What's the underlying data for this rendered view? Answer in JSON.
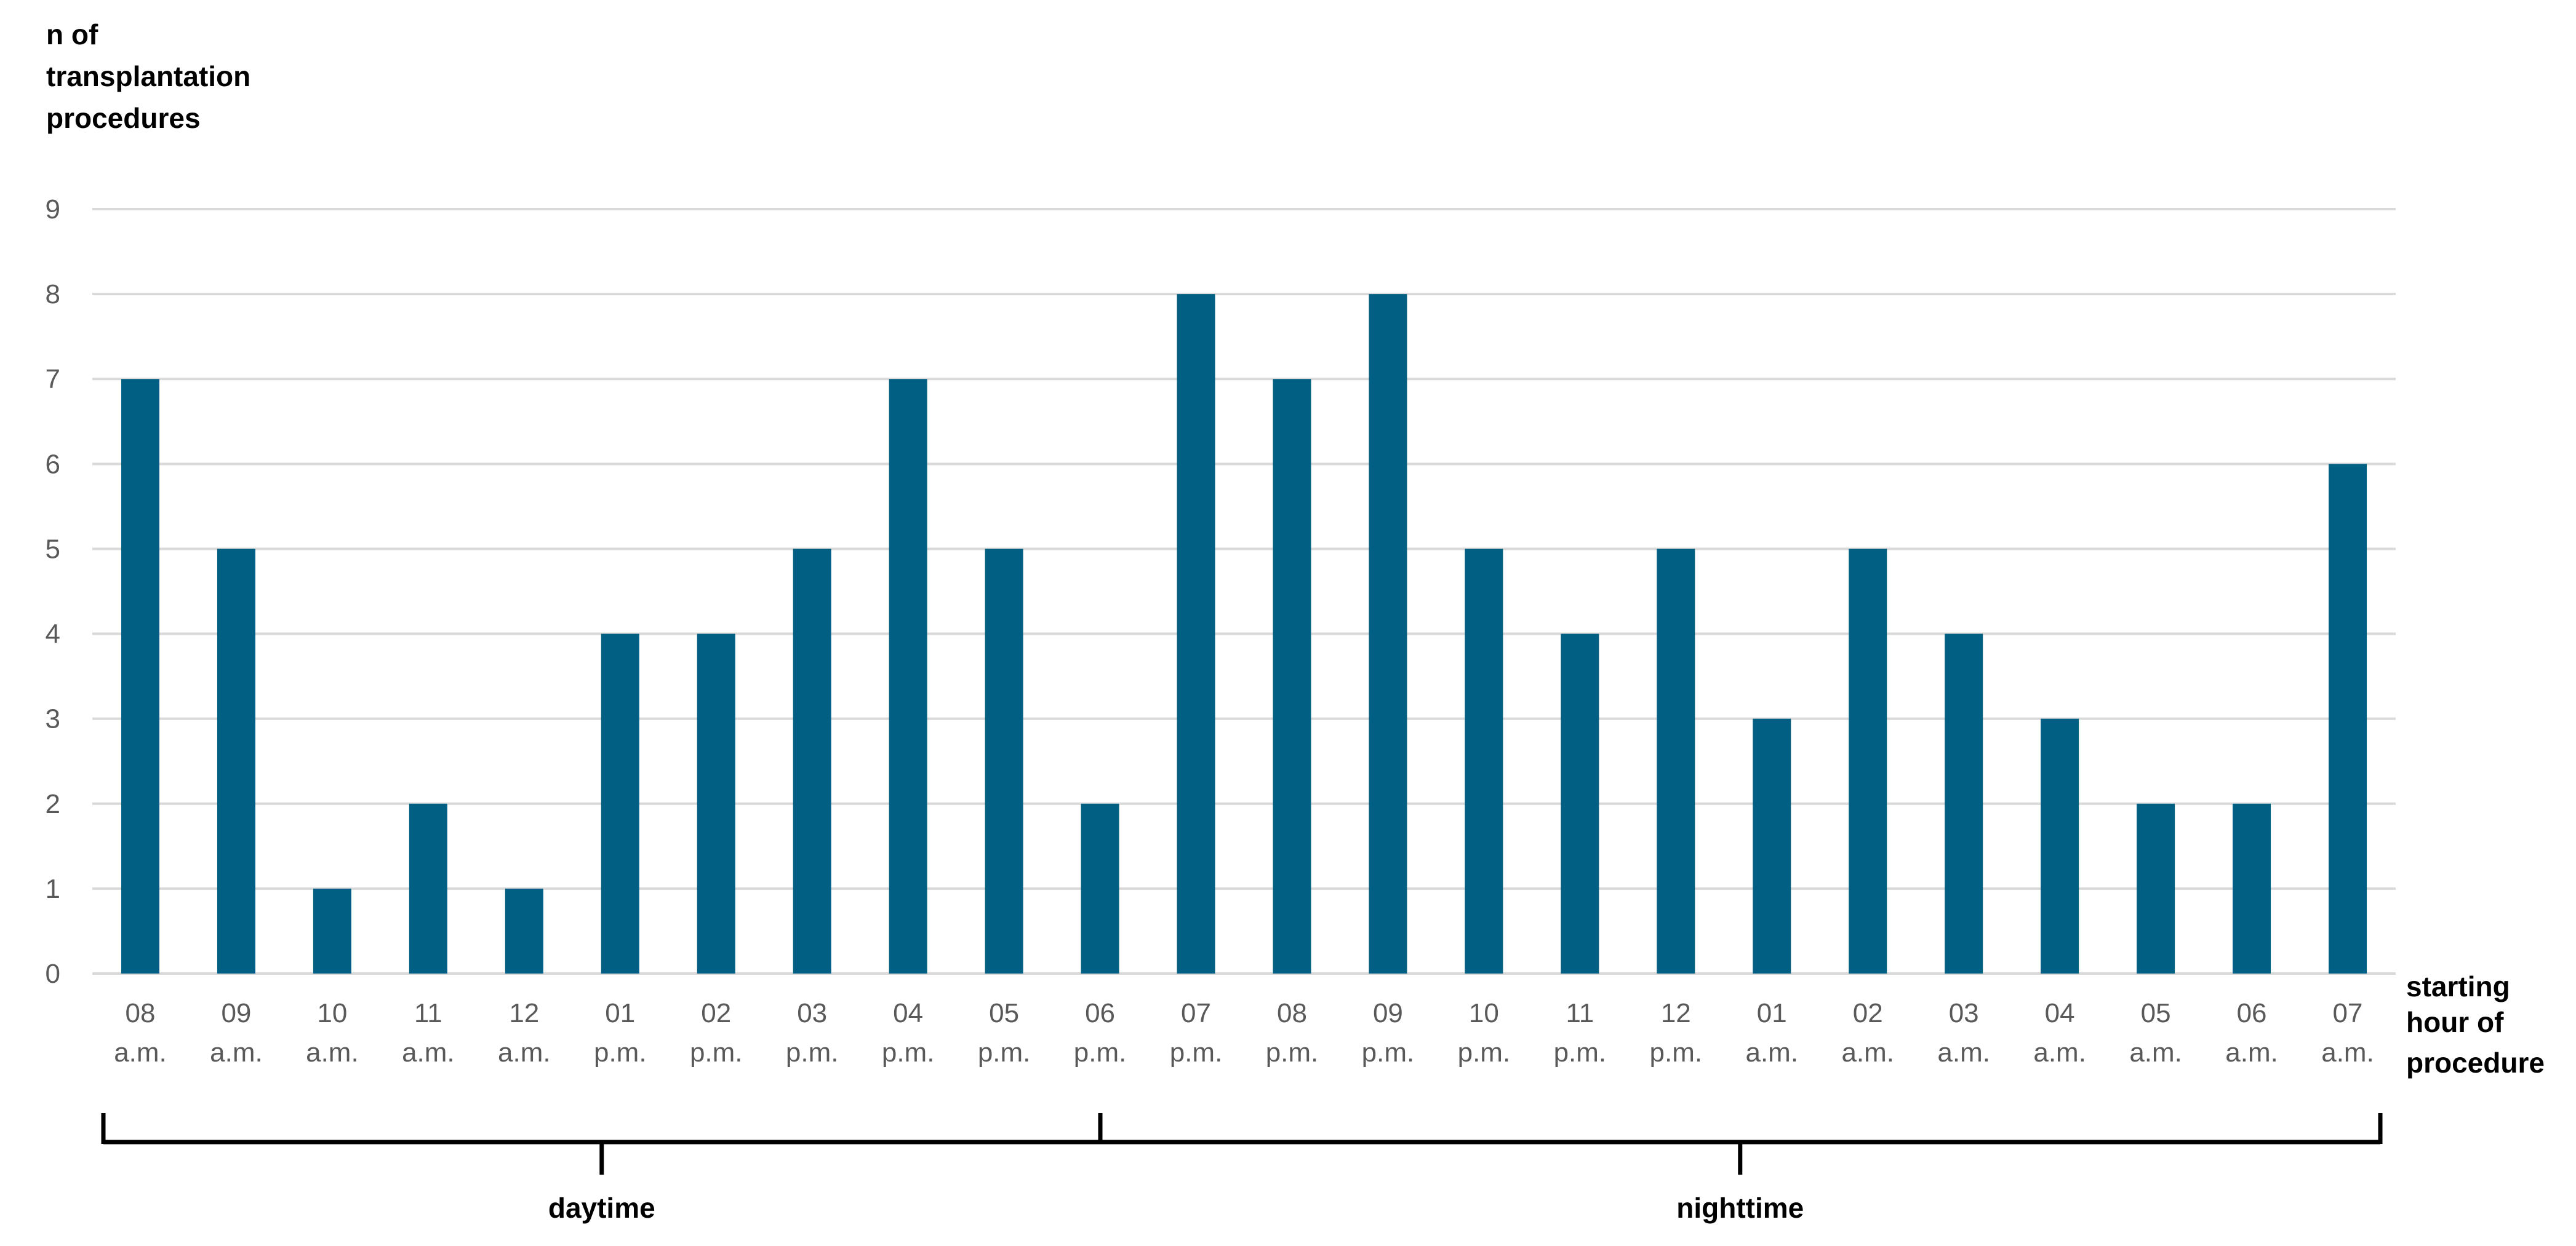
{
  "chart_data": {
    "type": "bar",
    "ylabel_lines": [
      "n of",
      "transplantation",
      "procedures"
    ],
    "xlabel_lines": [
      "starting",
      "hour of",
      "procedure"
    ],
    "categories": [
      [
        "08",
        "a.m."
      ],
      [
        "09",
        "a.m."
      ],
      [
        "10",
        "a.m."
      ],
      [
        "11",
        "a.m."
      ],
      [
        "12",
        "a.m."
      ],
      [
        "01",
        "p.m."
      ],
      [
        "02",
        "p.m."
      ],
      [
        "03",
        "p.m."
      ],
      [
        "04",
        "p.m."
      ],
      [
        "05",
        "p.m."
      ],
      [
        "06",
        "p.m."
      ],
      [
        "07",
        "p.m."
      ],
      [
        "08",
        "p.m."
      ],
      [
        "09",
        "p.m."
      ],
      [
        "10",
        "p.m."
      ],
      [
        "11",
        "p.m."
      ],
      [
        "12",
        "p.m."
      ],
      [
        "01",
        "a.m."
      ],
      [
        "02",
        "a.m."
      ],
      [
        "03",
        "a.m."
      ],
      [
        "04",
        "a.m."
      ],
      [
        "05",
        "a.m."
      ],
      [
        "06",
        "a.m."
      ],
      [
        "07",
        "a.m."
      ]
    ],
    "values": [
      7,
      5,
      1,
      2,
      1,
      4,
      4,
      5,
      7,
      5,
      2,
      8,
      7,
      8,
      5,
      4,
      5,
      3,
      5,
      4,
      3,
      2,
      2,
      6
    ],
    "ylim": [
      0,
      9
    ],
    "yticks": [
      "0",
      "1",
      "2",
      "3",
      "4",
      "5",
      "6",
      "7",
      "8",
      "9"
    ],
    "grid": true,
    "bar_color": "#005f83",
    "groups": [
      {
        "label": "daytime",
        "start_index": 0,
        "end_index": 10
      },
      {
        "label": "nighttime",
        "start_index": 10,
        "end_index": 23
      }
    ]
  }
}
